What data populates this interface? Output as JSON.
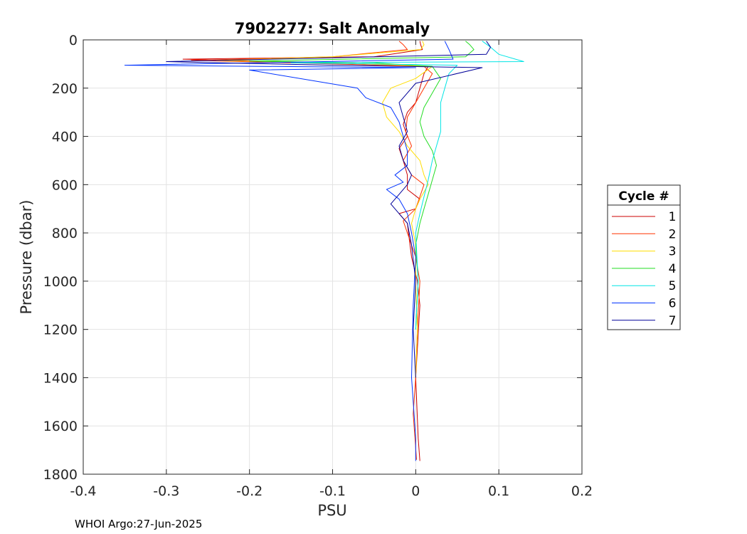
{
  "chart_data": {
    "type": "line",
    "title": "7902277: Salt Anomaly",
    "xlabel": "PSU",
    "ylabel": "Pressure (dbar)",
    "xlim": [
      -0.4,
      0.2
    ],
    "ylim": [
      0,
      1800
    ],
    "y_reversed": true,
    "grid": true,
    "xticks": [
      -0.4,
      -0.3,
      -0.2,
      -0.1,
      0,
      0.1,
      0.2
    ],
    "xtick_labels": [
      "-0.4",
      "-0.3",
      "-0.2",
      "-0.1",
      "0",
      "0.1",
      "0.2"
    ],
    "yticks": [
      0,
      200,
      400,
      600,
      800,
      1000,
      1200,
      1400,
      1600,
      1800
    ],
    "ytick_labels": [
      "0",
      "200",
      "400",
      "600",
      "800",
      "1000",
      "1200",
      "1400",
      "1600",
      "1800"
    ],
    "legend": {
      "title": "Cycle #",
      "placement": "right-outside"
    },
    "series": [
      {
        "name": "1",
        "color": "#cc0000",
        "x": [
          0.005,
          0.006,
          0.008,
          -0.05,
          -0.28,
          -0.1,
          0.015,
          0.01,
          0.005,
          0.0,
          -0.01,
          -0.015,
          -0.01,
          -0.02,
          -0.015,
          -0.01,
          -0.01,
          0.005,
          0.0,
          -0.02,
          -0.01,
          -0.008,
          -0.005,
          0.002,
          0.005,
          0.0,
          0.003,
          0.005
        ],
        "y": [
          5,
          20,
          40,
          70,
          80,
          95,
          110,
          140,
          200,
          260,
          300,
          350,
          400,
          450,
          500,
          560,
          620,
          660,
          700,
          720,
          760,
          820,
          900,
          1000,
          1100,
          1400,
          1650,
          1745
        ]
      },
      {
        "name": "2",
        "color": "#ff3300",
        "x": [
          -0.02,
          -0.015,
          -0.01,
          -0.1,
          -0.27,
          -0.15,
          0.01,
          0.02,
          0.01,
          0.0,
          -0.01,
          -0.012,
          -0.005,
          -0.015,
          -0.005,
          0.01,
          0.005,
          0.0,
          -0.015,
          -0.01,
          0.0,
          0.005,
          0.002,
          0.0,
          -0.003,
          0.001
        ],
        "y": [
          5,
          20,
          40,
          70,
          85,
          95,
          110,
          140,
          200,
          260,
          320,
          380,
          440,
          500,
          560,
          600,
          650,
          700,
          750,
          800,
          900,
          1000,
          1200,
          1400,
          1550,
          1740
        ]
      },
      {
        "name": "3",
        "color": "#ffdd00",
        "x": [
          0.008,
          0.01,
          0.006,
          -0.1,
          -0.24,
          -0.1,
          0.02,
          0.0,
          -0.03,
          -0.04,
          -0.035,
          -0.02,
          -0.01,
          0.005,
          0.01,
          0.015,
          0.005,
          0.0,
          -0.005,
          0.0,
          0.0,
          0.002,
          0.0
        ],
        "y": [
          5,
          20,
          40,
          70,
          85,
          95,
          110,
          160,
          200,
          260,
          320,
          380,
          440,
          500,
          560,
          600,
          660,
          700,
          760,
          850,
          1000,
          1200,
          1400
        ]
      },
      {
        "name": "4",
        "color": "#22dd22",
        "x": [
          0.06,
          0.065,
          0.07,
          0.06,
          -0.2,
          -0.05,
          0.02,
          0.03,
          0.02,
          0.01,
          0.005,
          0.01,
          0.02,
          0.025,
          0.02,
          0.015,
          0.01,
          0.005,
          0.0,
          0.003,
          0.0
        ],
        "y": [
          5,
          20,
          40,
          70,
          88,
          95,
          110,
          160,
          220,
          280,
          340,
          400,
          460,
          520,
          580,
          640,
          700,
          760,
          850,
          1000,
          1200
        ]
      },
      {
        "name": "5",
        "color": "#00e5e5",
        "x": [
          0.08,
          0.09,
          0.1,
          0.13,
          -0.15,
          0.05,
          0.04,
          0.035,
          0.03,
          0.03,
          0.03,
          0.025,
          0.02,
          0.015,
          0.01,
          0.005,
          0.0,
          0.003,
          0.0
        ],
        "y": [
          5,
          30,
          60,
          90,
          95,
          105,
          140,
          200,
          260,
          320,
          380,
          440,
          500,
          580,
          650,
          720,
          800,
          1000,
          1200
        ]
      },
      {
        "name": "6",
        "color": "#0033ff",
        "x": [
          0.035,
          0.04,
          0.045,
          -0.35,
          0.0,
          -0.2,
          -0.07,
          -0.06,
          -0.03,
          -0.02,
          -0.015,
          -0.01,
          -0.01,
          -0.025,
          -0.015,
          -0.035,
          -0.02,
          -0.01,
          -0.005,
          0.0,
          -0.003,
          -0.005,
          0.0,
          0.0
        ],
        "y": [
          5,
          40,
          80,
          105,
          115,
          125,
          200,
          240,
          280,
          340,
          400,
          460,
          520,
          560,
          590,
          620,
          660,
          720,
          800,
          900,
          1100,
          1400,
          1650,
          1745
        ]
      },
      {
        "name": "7",
        "color": "#000099",
        "x": [
          0.085,
          0.09,
          0.085,
          -0.3,
          -0.1,
          0.08,
          0.0,
          -0.02,
          -0.015,
          -0.01,
          -0.02,
          -0.015,
          -0.005,
          -0.01,
          -0.02,
          -0.03,
          -0.01,
          -0.005,
          0.0,
          -0.003,
          0.0
        ],
        "y": [
          5,
          30,
          60,
          90,
          105,
          115,
          180,
          260,
          320,
          380,
          440,
          500,
          560,
          600,
          640,
          680,
          760,
          850,
          1000,
          1200,
          1400
        ]
      }
    ]
  },
  "footer": {
    "text": "WHOI Argo:27-Jun-2025"
  }
}
